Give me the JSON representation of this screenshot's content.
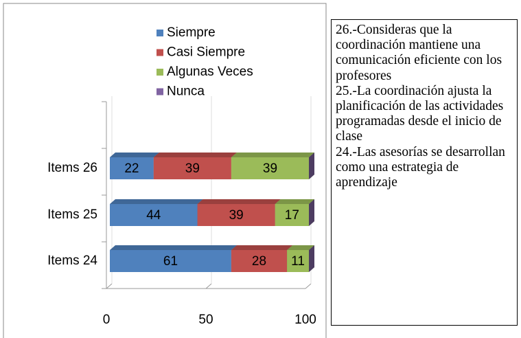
{
  "chart_data": {
    "type": "bar3d_stacked_horizontal",
    "categories": [
      "Items 26",
      "Items 25",
      "Items 24"
    ],
    "series": [
      {
        "name": "Siempre",
        "color": "#4f81bd",
        "values": [
          22,
          44,
          61
        ]
      },
      {
        "name": "Casi Siempre",
        "color": "#c0504d",
        "values": [
          39,
          39,
          28
        ]
      },
      {
        "name": "Algunas Veces",
        "color": "#9bbb59",
        "values": [
          39,
          17,
          11
        ]
      },
      {
        "name": "Nunca",
        "color": "#8064a2",
        "values": [
          0,
          0,
          0
        ]
      }
    ],
    "xlim": [
      0,
      100
    ],
    "xticks": [
      0,
      50,
      100
    ],
    "legend": "top",
    "annotations": [
      "26.-Consideras que la coordinación mantiene una comunicación eficiente con los profesores",
      "25.-La coordinación ajusta la planificación de las actividades programadas desde el inicio de clase",
      "24.-Las asesorías se desarrollan como una estrategia de aprendizaje"
    ]
  }
}
